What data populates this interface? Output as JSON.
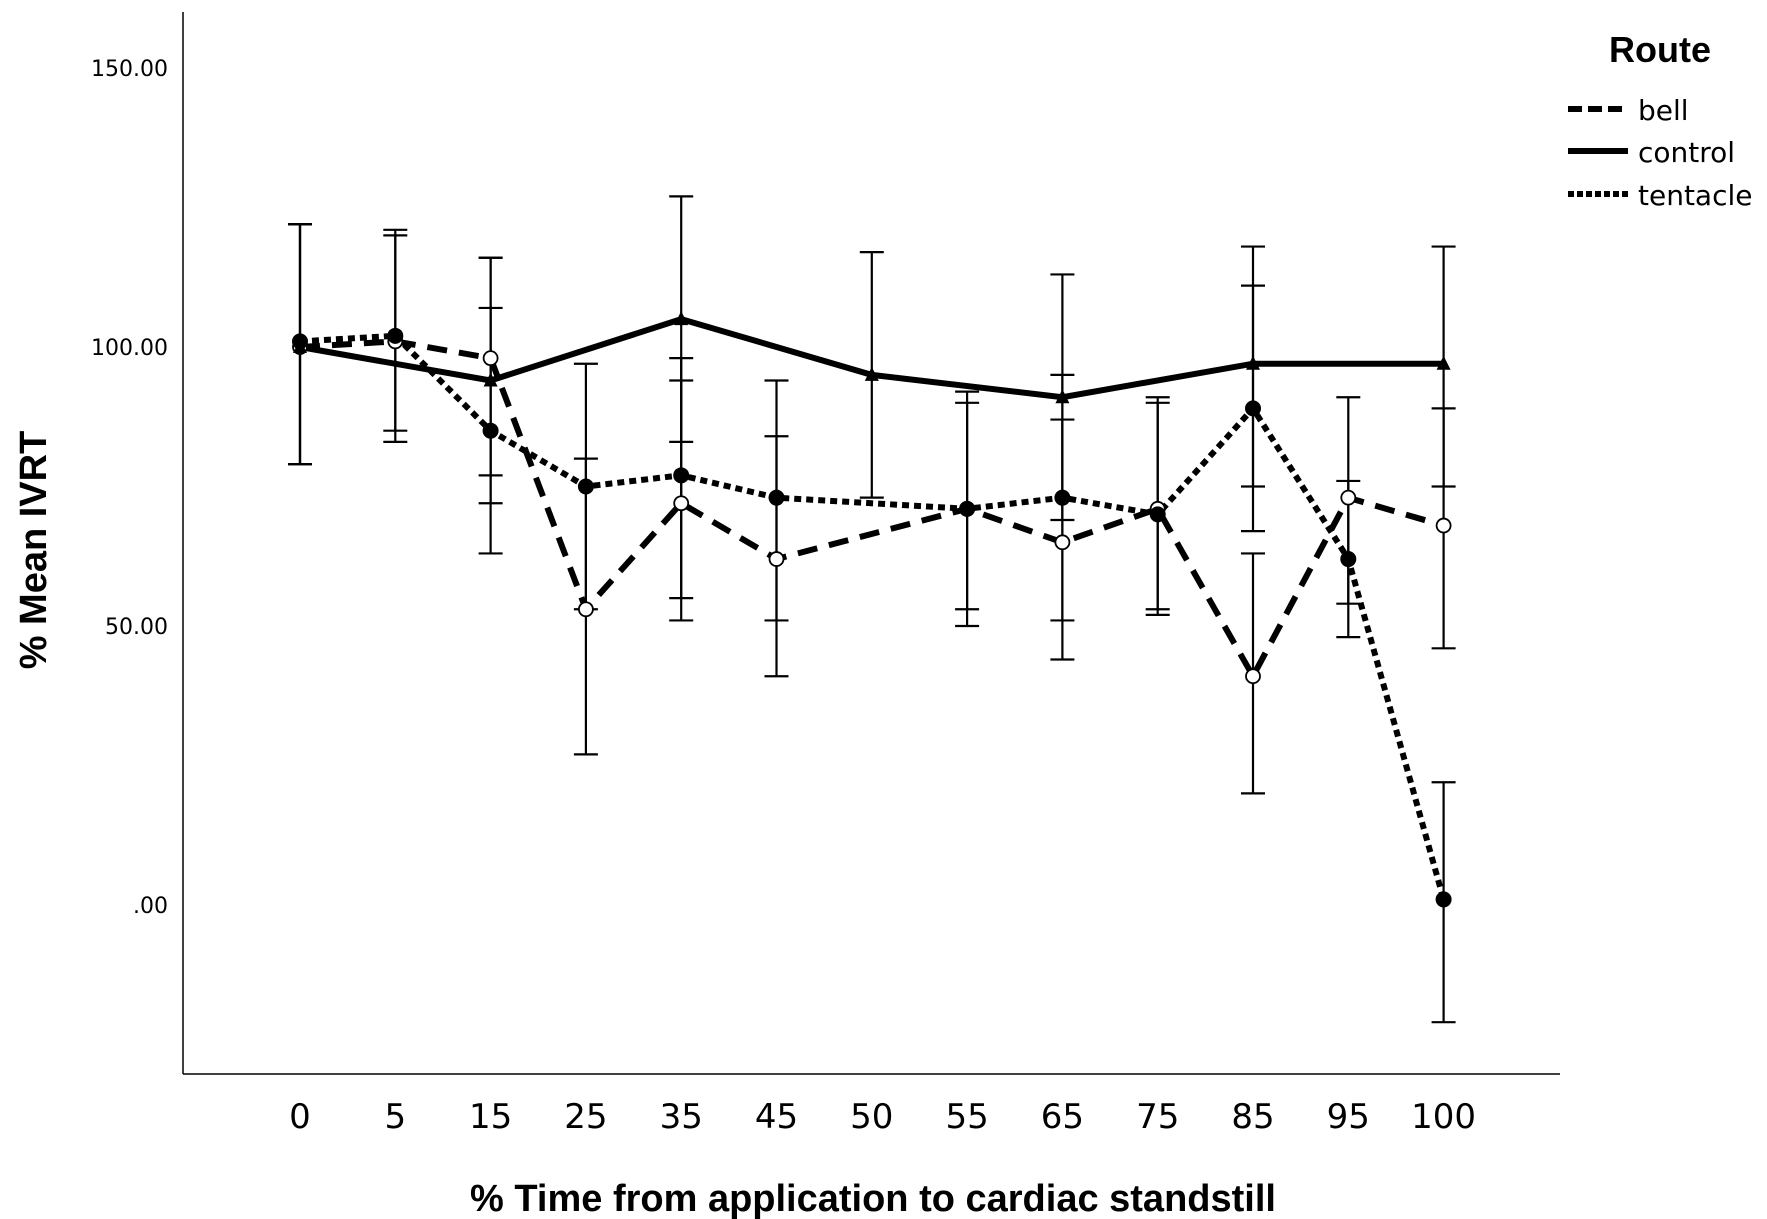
{
  "chart_data": {
    "type": "line",
    "title": "",
    "xlabel": "% Time from application to cardiac standstill",
    "ylabel": "% Mean IVRT",
    "categories": [
      "0",
      "5",
      "15",
      "25",
      "35",
      "45",
      "50",
      "55",
      "65",
      "75",
      "85",
      "95",
      "100"
    ],
    "y_ticks": [
      {
        "value": 0,
        "label": ".00"
      },
      {
        "value": 50,
        "label": "50.00"
      },
      {
        "value": 100,
        "label": "100.00"
      },
      {
        "value": 150,
        "label": "150.00"
      }
    ],
    "ylim": [
      -30,
      160
    ],
    "legend": {
      "title": "Route",
      "position": "top-right"
    },
    "series": [
      {
        "name": "bell",
        "line_style": "dashed",
        "marker": "open-circle",
        "points": [
          {
            "x": "0",
            "y": 100,
            "lo": 79,
            "hi": 122
          },
          {
            "x": "5",
            "y": 101,
            "lo": 85,
            "hi": 120
          },
          {
            "x": "15",
            "y": 98,
            "lo": 77,
            "hi": 116
          },
          {
            "x": "25",
            "y": 53,
            "lo": 27,
            "hi": 80
          },
          {
            "x": "35",
            "y": 72,
            "lo": 51,
            "hi": 94
          },
          {
            "x": "45",
            "y": 62,
            "lo": 41,
            "hi": 84
          },
          {
            "x": "55",
            "y": 71,
            "lo": 50,
            "hi": 92
          },
          {
            "x": "65",
            "y": 65,
            "lo": 44,
            "hi": 87
          },
          {
            "x": "75",
            "y": 71,
            "lo": 52,
            "hi": 90
          },
          {
            "x": "85",
            "y": 41,
            "lo": 20,
            "hi": 63
          },
          {
            "x": "95",
            "y": 73,
            "lo": 54,
            "hi": 91
          },
          {
            "x": "100",
            "y": 68,
            "lo": 46,
            "hi": 89
          }
        ]
      },
      {
        "name": "control",
        "line_style": "solid",
        "marker": "triangle",
        "points": [
          {
            "x": "0",
            "y": 100,
            "lo": 79,
            "hi": 122
          },
          {
            "x": "15",
            "y": 94,
            "lo": 72,
            "hi": 116
          },
          {
            "x": "35",
            "y": 105,
            "lo": 83,
            "hi": 127
          },
          {
            "x": "50",
            "y": 95,
            "lo": 73,
            "hi": 117
          },
          {
            "x": "65",
            "y": 91,
            "lo": 69,
            "hi": 113
          },
          {
            "x": "85",
            "y": 97,
            "lo": 75,
            "hi": 118
          },
          {
            "x": "100",
            "y": 97,
            "lo": 75,
            "hi": 118
          }
        ]
      },
      {
        "name": "tentacle",
        "line_style": "dotted",
        "marker": "filled-circle",
        "points": [
          {
            "x": "0",
            "y": 101,
            "lo": 79,
            "hi": 122
          },
          {
            "x": "5",
            "y": 102,
            "lo": 83,
            "hi": 121
          },
          {
            "x": "15",
            "y": 85,
            "lo": 63,
            "hi": 107
          },
          {
            "x": "25",
            "y": 75,
            "lo": 53,
            "hi": 97
          },
          {
            "x": "35",
            "y": 77,
            "lo": 55,
            "hi": 98
          },
          {
            "x": "45",
            "y": 73,
            "lo": 51,
            "hi": 94
          },
          {
            "x": "55",
            "y": 71,
            "lo": 53,
            "hi": 90
          },
          {
            "x": "65",
            "y": 73,
            "lo": 51,
            "hi": 95
          },
          {
            "x": "75",
            "y": 70,
            "lo": 53,
            "hi": 91
          },
          {
            "x": "85",
            "y": 89,
            "lo": 67,
            "hi": 111
          },
          {
            "x": "95",
            "y": 62,
            "lo": 48,
            "hi": 76
          },
          {
            "x": "100",
            "y": 1,
            "lo": -21,
            "hi": 22
          }
        ]
      }
    ]
  }
}
